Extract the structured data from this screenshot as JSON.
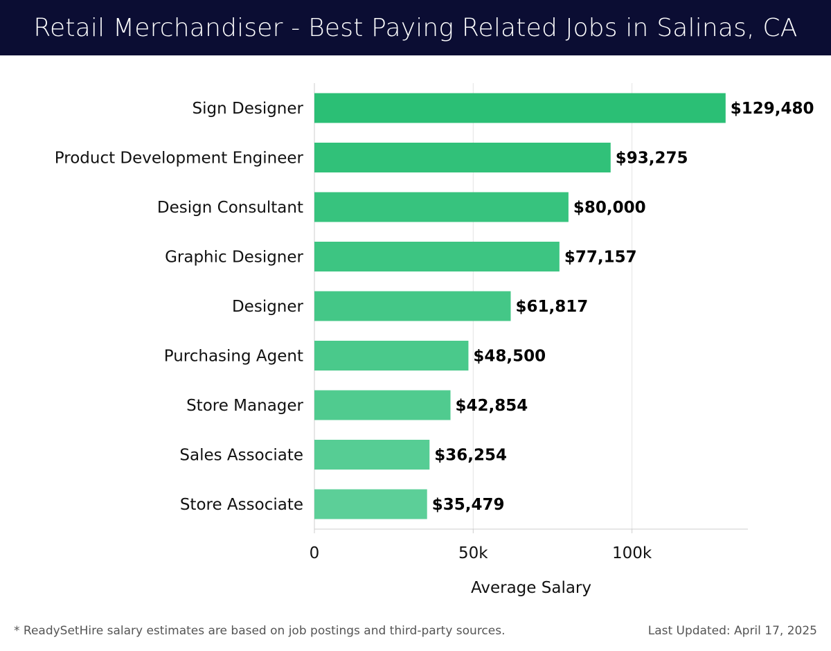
{
  "header": {
    "title": "Retail Merchandiser - Best Paying Related Jobs in Salinas, CA"
  },
  "footer": {
    "note": "* ReadySetHire salary estimates are based on job postings and third-party sources.",
    "updated": "Last Updated: April 17, 2025"
  },
  "chart_data": {
    "type": "bar",
    "orientation": "horizontal",
    "categories": [
      "Sign Designer",
      "Product Development Engineer",
      "Design Consultant",
      "Graphic Designer",
      "Designer",
      "Purchasing Agent",
      "Store Manager",
      "Sales Associate",
      "Store Associate"
    ],
    "values": [
      129480,
      93275,
      80000,
      77157,
      61817,
      48500,
      42854,
      36254,
      35479
    ],
    "value_labels": [
      "$129,480",
      "$93,275",
      "$80,000",
      "$77,157",
      "$61,817",
      "$48,500",
      "$42,854",
      "$36,254",
      "$35,479"
    ],
    "xlabel": "Average Salary",
    "xlim": [
      0,
      136500
    ],
    "xticks": [
      0,
      50000,
      100000
    ],
    "xtick_labels": [
      "0",
      "50k",
      "100k"
    ],
    "grid": true,
    "colors": {
      "bar_top": "#2bbf75",
      "bar_bottom": "#5ccf98",
      "grid": "#e3e3e3",
      "axis": "#cccccc"
    }
  }
}
